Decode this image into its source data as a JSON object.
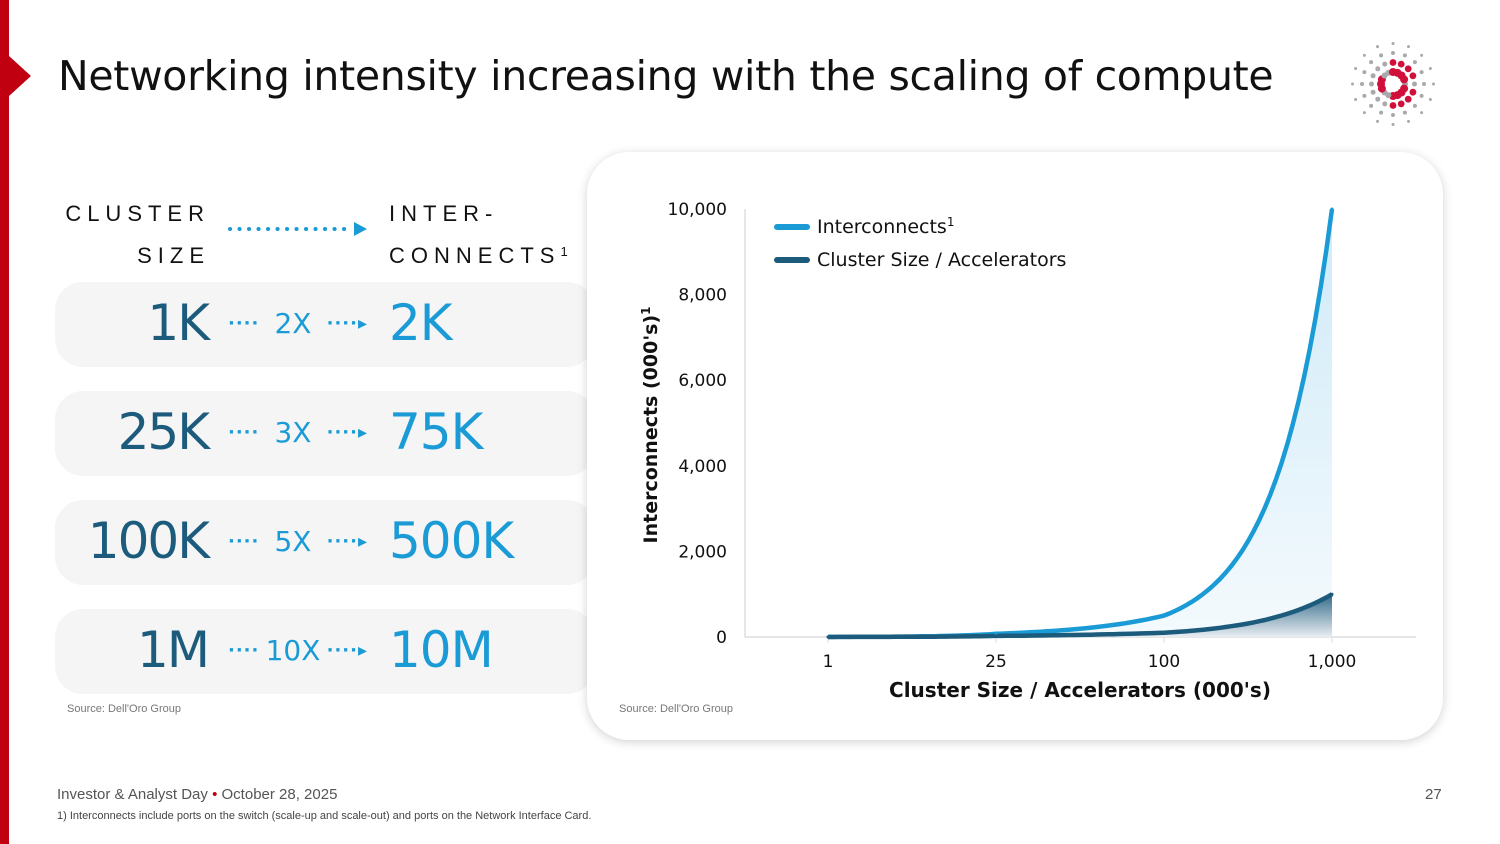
{
  "title": "Networking intensity increasing with the scaling of compute",
  "left_panel": {
    "header_left": "CLUSTER SIZE",
    "header_left_line1": "CLUSTER",
    "header_left_line2": "SIZE",
    "header_right_line1": "INTER-",
    "header_right_line2": "CONNECTS",
    "header_right_sup": "1",
    "rows": [
      {
        "from": "1K",
        "multiplier": "2X",
        "to": "2K"
      },
      {
        "from": "25K",
        "multiplier": "3X",
        "to": "75K"
      },
      {
        "from": "100K",
        "multiplier": "5X",
        "to": "500K"
      },
      {
        "from": "1M",
        "multiplier": "10X",
        "to": "10M"
      }
    ],
    "source": "Source: Dell'Oro Group"
  },
  "colors": {
    "brand_red": "#c00010",
    "interconnects": "#1b9bd6",
    "cluster": "#1d5b7d"
  },
  "chart_data": {
    "type": "line",
    "xlabel": "Cluster Size / Accelerators (000's)",
    "ylabel": "Interconnects (000's)",
    "ylabel_sup": "1",
    "categories": [
      "1",
      "25",
      "100",
      "1,000"
    ],
    "x": [
      1,
      25,
      100,
      1000
    ],
    "ylim": [
      0,
      10000
    ],
    "yticks": [
      "0",
      "2,000",
      "4,000",
      "6,000",
      "8,000",
      "10,000"
    ],
    "ytick_values": [
      0,
      2000,
      4000,
      6000,
      8000,
      10000
    ],
    "grid": false,
    "legend_placement": "top-left",
    "series": [
      {
        "name": "Interconnects",
        "name_sup": "1",
        "values": [
          2,
          75,
          500,
          10000
        ],
        "color": "#1b9bd6"
      },
      {
        "name": "Cluster Size / Accelerators",
        "values": [
          1,
          25,
          100,
          1000
        ],
        "color": "#1d5b7d"
      }
    ],
    "source": "Source: Dell'Oro Group"
  },
  "footer": {
    "event": "Investor & Analyst Day",
    "date": "October 28, 2025",
    "separator": "•",
    "page": "27",
    "footnote": "1)   Interconnects include ports on the switch (scale-up and scale-out) and ports on the Network Interface Card."
  }
}
